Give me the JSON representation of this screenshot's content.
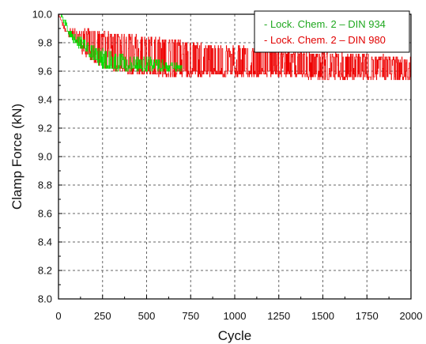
{
  "chart_data": {
    "type": "line",
    "title": "",
    "xlabel": "Cycle",
    "ylabel": "Clamp Force (kN)",
    "xlim": [
      0,
      2000
    ],
    "ylim": [
      8.0,
      10.0
    ],
    "x_ticks": [
      0,
      250,
      500,
      750,
      1000,
      1250,
      1500,
      1750,
      2000
    ],
    "y_ticks": [
      8.0,
      8.2,
      8.4,
      8.6,
      8.8,
      9.0,
      9.2,
      9.4,
      9.6,
      9.8,
      10.0
    ],
    "grid": true,
    "legend_position": "top-right",
    "series": [
      {
        "name": "- Lock. Chem. 2 – DIN 934",
        "color": "#00dd00",
        "x": [
          0,
          20,
          40,
          60,
          80,
          100,
          150,
          200,
          250,
          300,
          400,
          500,
          600,
          650,
          700
        ],
        "y_low": [
          10.0,
          9.98,
          9.88,
          9.84,
          9.8,
          9.78,
          9.72,
          9.66,
          9.62,
          9.6,
          9.6,
          9.6,
          9.6,
          9.6,
          9.6
        ],
        "y_high": [
          10.0,
          10.0,
          9.96,
          9.9,
          9.88,
          9.86,
          9.82,
          9.78,
          9.76,
          9.74,
          9.72,
          9.7,
          9.68,
          9.66,
          9.64
        ]
      },
      {
        "name": "- Lock. Chem. 2 – DIN 980",
        "color": "#ee0000",
        "x": [
          0,
          40,
          80,
          150,
          250,
          400,
          600,
          800,
          1000,
          1250,
          1500,
          1750,
          2000
        ],
        "y_low": [
          10.0,
          9.86,
          9.82,
          9.7,
          9.62,
          9.58,
          9.56,
          9.56,
          9.56,
          9.56,
          9.54,
          9.54,
          9.54
        ],
        "y_high": [
          10.0,
          9.9,
          9.9,
          9.9,
          9.88,
          9.86,
          9.84,
          9.8,
          9.78,
          9.76,
          9.74,
          9.72,
          9.7
        ]
      }
    ]
  }
}
